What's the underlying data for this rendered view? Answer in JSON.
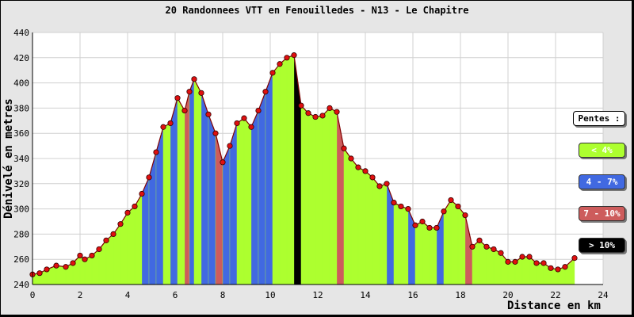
{
  "chart_data": {
    "type": "area",
    "title": "20 Randonnees VTT en Fenouilledes - N13 - Le Chapitre",
    "xlabel": "Distance en km",
    "ylabel": "Dénivelé en metres",
    "xlim": [
      0,
      24
    ],
    "ylim": [
      240,
      440
    ],
    "xticks": [
      0,
      2,
      4,
      6,
      8,
      10,
      12,
      14,
      16,
      18,
      20,
      22,
      24
    ],
    "yticks": [
      240,
      260,
      280,
      300,
      320,
      340,
      360,
      380,
      400,
      420,
      440
    ],
    "grid": true,
    "legend_position": "right",
    "series": [
      {
        "x": [
          0.0,
          0.3,
          0.6,
          1.0,
          1.4,
          1.7,
          2.0,
          2.2,
          2.5,
          2.8,
          3.1,
          3.4,
          3.7,
          4.0,
          4.3,
          4.6,
          4.9,
          5.2,
          5.5,
          5.8,
          6.1,
          6.4,
          6.6,
          6.8,
          7.1,
          7.4,
          7.7,
          8.0,
          8.3,
          8.6,
          8.9,
          9.2,
          9.5,
          9.8,
          10.1,
          10.4,
          10.7,
          11.0,
          11.3,
          11.6,
          11.9,
          12.2,
          12.5,
          12.8,
          13.1,
          13.4,
          13.7,
          14.0,
          14.3,
          14.6,
          14.9,
          15.2,
          15.5,
          15.8,
          16.1,
          16.4,
          16.7,
          17.0,
          17.3,
          17.6,
          17.9,
          18.2,
          18.5,
          18.8,
          19.1,
          19.4,
          19.7,
          20.0,
          20.3,
          20.6,
          20.9,
          21.2,
          21.5,
          21.8,
          22.1,
          22.4,
          22.8
        ],
        "y": [
          248,
          249,
          252,
          255,
          254,
          257,
          263,
          260,
          263,
          268,
          275,
          280,
          288,
          297,
          302,
          312,
          325,
          345,
          365,
          368,
          388,
          378,
          393,
          403,
          392,
          375,
          360,
          337,
          350,
          368,
          372,
          365,
          378,
          393,
          408,
          415,
          420,
          422,
          382,
          376,
          373,
          374,
          380,
          377,
          348,
          340,
          333,
          330,
          325,
          318,
          320,
          305,
          302,
          300,
          287,
          290,
          285,
          285,
          298,
          307,
          302,
          295,
          270,
          275,
          270,
          268,
          265,
          258,
          258,
          262,
          262,
          257,
          257,
          253,
          252,
          254,
          261
        ]
      }
    ],
    "slope_classes": [
      {
        "label": "< 4%",
        "color": "#adff2f",
        "text_color": "#ffffff"
      },
      {
        "label": "4 - 7%",
        "color": "#4169e1",
        "text_color": "#ffffff"
      },
      {
        "label": "7 - 10%",
        "color": "#cd5c5c",
        "text_color": "#ffffff"
      },
      {
        "label": "> 10%",
        "color": "#000000",
        "text_color": "#ffffff"
      }
    ],
    "point_color": "#e01010",
    "legend_title": "Pentes :"
  }
}
